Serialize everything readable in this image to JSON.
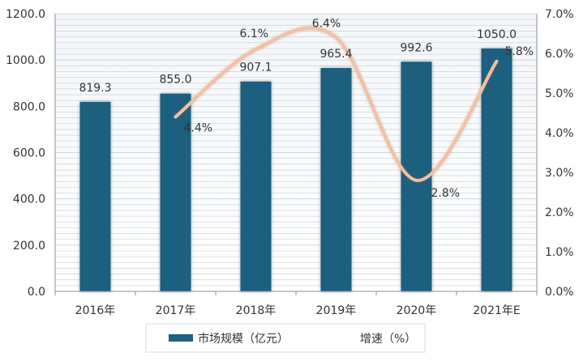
{
  "chart_data": {
    "type": "bar",
    "categories": [
      "2016年",
      "2017年",
      "2018年",
      "2019年",
      "2020年",
      "2021年E"
    ],
    "series": [
      {
        "name": "市场规模（亿元）",
        "type": "bar",
        "axis": "left",
        "values": [
          819.3,
          855.0,
          907.1,
          965.4,
          992.6,
          1050.0
        ],
        "labels": [
          "819.3",
          "855.0",
          "907.1",
          "965.4",
          "992.6",
          "1050.0"
        ],
        "color": "#1f5f7f"
      },
      {
        "name": "增速（%）",
        "type": "line",
        "axis": "right",
        "smooth": true,
        "values": [
          null,
          4.4,
          6.1,
          6.4,
          2.8,
          5.8
        ],
        "labels": [
          "",
          "4.4%",
          "6.1%",
          "6.4%",
          "2.8%",
          "5.8%"
        ],
        "color": "#f2c0a3"
      }
    ],
    "y_left": {
      "ylim": [
        0,
        1200
      ],
      "ticks": [
        0,
        200,
        400,
        600,
        800,
        1000,
        1200
      ],
      "tick_labels": [
        "0.0",
        "200.0",
        "400.0",
        "600.0",
        "800.0",
        "1000.0",
        "1200.0"
      ]
    },
    "y_right": {
      "ylim": [
        0,
        7
      ],
      "ticks": [
        0,
        1,
        2,
        3,
        4,
        5,
        6,
        7
      ],
      "tick_labels": [
        "0.0%",
        "1.0%",
        "2.0%",
        "3.0%",
        "4.0%",
        "5.0%",
        "6.0%",
        "7.0%"
      ]
    },
    "grid": true,
    "legend_position": "bottom-center",
    "title": "",
    "xlabel": "",
    "ylabel": ""
  },
  "colors": {
    "bar": "#1f5f7f",
    "line": "#f2c0a3",
    "grid": "#d3d7dd",
    "text": "#333333"
  }
}
